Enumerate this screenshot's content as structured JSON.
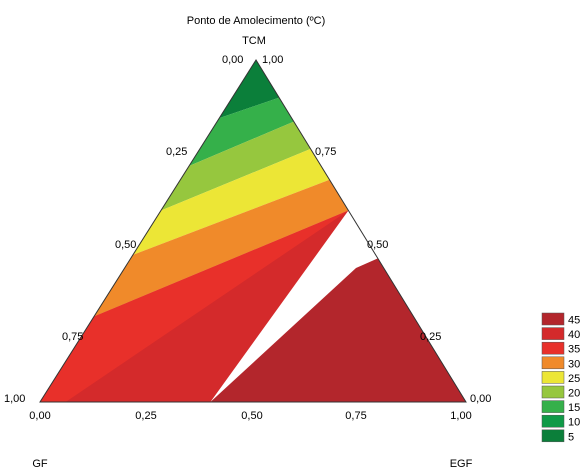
{
  "chart_data": {
    "type": "ternary-contour",
    "title": "Ponto de Amolecimento (ºC)",
    "vertices": {
      "top": "TCM",
      "left": "GF",
      "right": "EGF"
    },
    "left_edge_ticks": [
      "1,00",
      "0,75",
      "0,50",
      "0,25",
      "0,00"
    ],
    "right_edge_ticks": [
      "1,00",
      "0,75",
      "0,50",
      "0,25",
      "0,00"
    ],
    "bottom_ticks": [
      "0,00",
      "0,25",
      "0,50",
      "0,75",
      "1,00"
    ],
    "legend": [
      {
        "label": "45",
        "color": "#b3262c"
      },
      {
        "label": "40",
        "color": "#d42a2b"
      },
      {
        "label": "35",
        "color": "#e8302a"
      },
      {
        "label": "30",
        "color": "#f08a2a"
      },
      {
        "label": "25",
        "color": "#ece636"
      },
      {
        "label": "20",
        "color": "#96c73e"
      },
      {
        "label": "15",
        "color": "#35b04a"
      },
      {
        "label": "10",
        "color": "#0f9a47"
      },
      {
        "label": "5",
        "color": "#0b7f3a"
      }
    ],
    "contour_boundaries_on_left_edge_tcm": [
      0.83,
      0.69,
      0.56,
      0.43,
      0.25
    ],
    "contour_boundaries_on_right_edge_tcm": [
      0.89,
      0.82,
      0.74,
      0.65,
      0.56
    ],
    "contour_boundaries_on_bottom_egf": [
      0.4
    ]
  }
}
